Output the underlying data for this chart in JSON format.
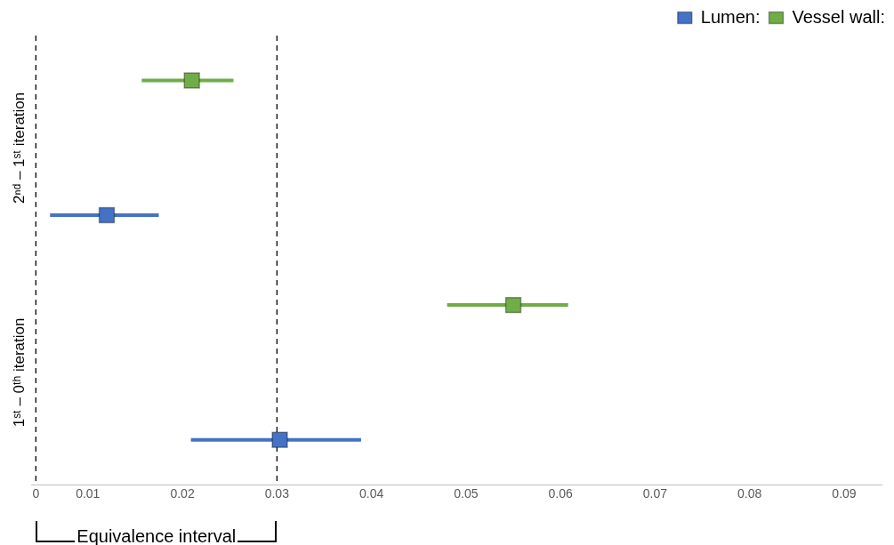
{
  "chart_data": {
    "type": "scatter",
    "orientation": "horizontal",
    "categories": [
      "2ⁿᵈ – 1ˢᵗ iteration",
      "1ˢᵗ – 0ᵗʰ iteration"
    ],
    "series": [
      {
        "name": "Vessel wall:",
        "color": "#70ad47",
        "values": [
          0.021,
          0.055
        ],
        "errors": [
          [
            0.0157,
            0.0254
          ],
          [
            0.048,
            0.0608
          ]
        ]
      },
      {
        "name": "Lumen:",
        "color": "#4472c4",
        "values": [
          0.012,
          0.0303
        ],
        "errors": [
          [
            0.006,
            0.0175
          ],
          [
            0.0209,
            0.0389
          ]
        ]
      }
    ],
    "xlim": [
      0.004,
      0.094
    ],
    "xticks": [
      {
        "value": 0.0045,
        "label": "0"
      },
      0.01,
      0.02,
      0.03,
      0.04,
      0.05,
      0.06,
      0.07,
      0.08,
      0.09
    ],
    "ref_lines": [
      {
        "axis": "x",
        "value": 0.0045,
        "line_style": "dashed",
        "color": "#000000"
      },
      {
        "axis": "x",
        "value": 0.03,
        "line_style": "dashed",
        "color": "#000000"
      }
    ],
    "annotations": [
      "Equivalence interval"
    ],
    "legend": "top right",
    "marker": "square"
  }
}
